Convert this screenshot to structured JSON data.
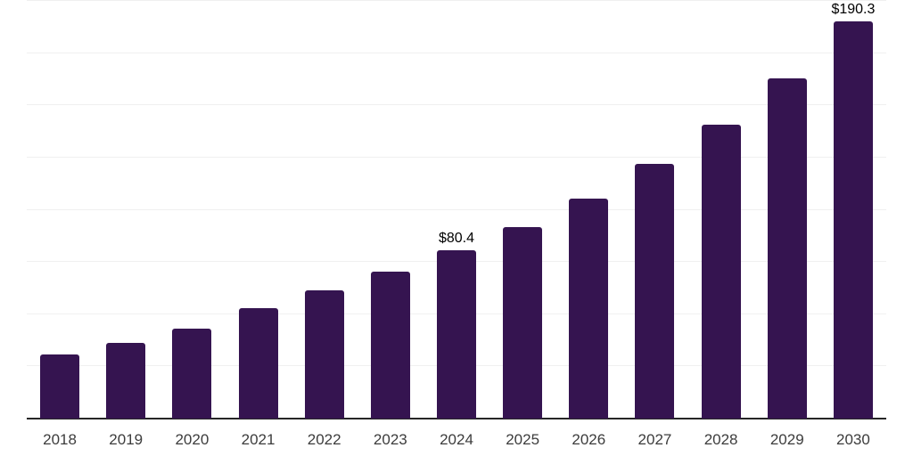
{
  "chart_data": {
    "type": "bar",
    "title": "",
    "xlabel": "",
    "ylabel": "",
    "categories": [
      "2018",
      "2019",
      "2020",
      "2021",
      "2022",
      "2023",
      "2024",
      "2025",
      "2026",
      "2027",
      "2028",
      "2029",
      "2030"
    ],
    "values": [
      30.7,
      36.4,
      43.0,
      52.9,
      61.5,
      70.2,
      80.4,
      91.9,
      105.5,
      121.8,
      140.9,
      162.9,
      190.3
    ],
    "bar_labels": [
      "",
      "",
      "",
      "",
      "",
      "",
      "$80.4",
      "",
      "",
      "",
      "",
      "",
      "$190.3"
    ],
    "ylim": [
      0,
      200
    ],
    "grid_step": 25,
    "grid": "horizontal",
    "legend_position": "none",
    "y_axis_tick_labels": "none",
    "colors": {
      "bar": "#351450",
      "value_label": "#000000",
      "tick_label": "#3c3c3c",
      "axis_line": "#262626",
      "gridline": "#f0f0f0",
      "background": "#ffffff"
    }
  }
}
